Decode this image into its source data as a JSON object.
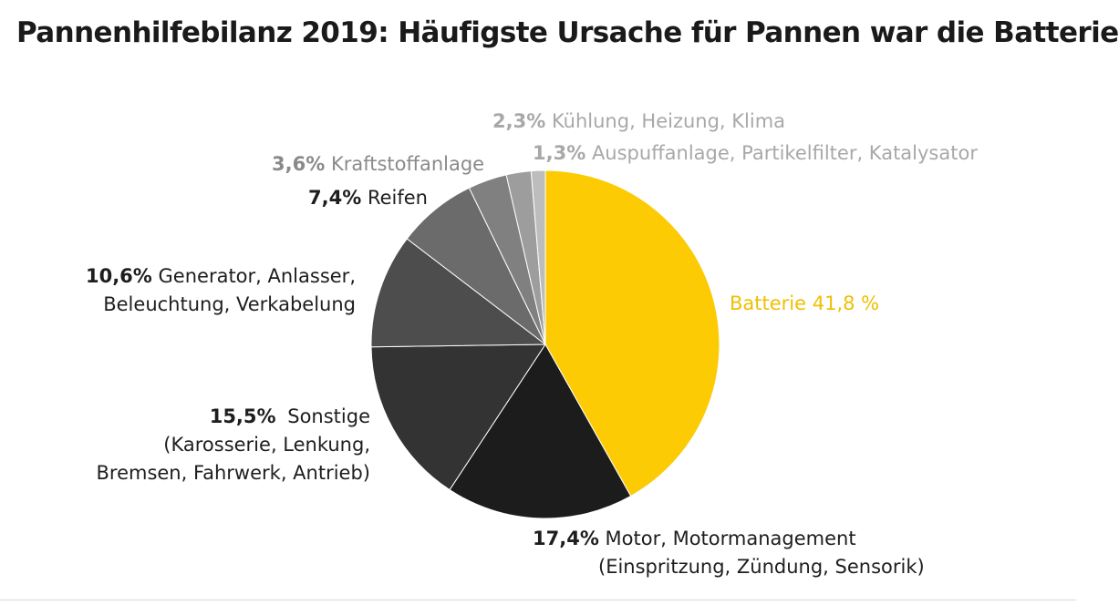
{
  "title": "Pannenhilfebilanz 2019: Häufigste Ursache für Pannen war die Batterie",
  "chart_data": {
    "type": "pie",
    "title": "Pannenhilfebilanz 2019: Häufigste Ursache für Pannen war die Batterie",
    "unit": "%",
    "slices": [
      {
        "label": "Batterie",
        "value": 41.8,
        "pct_text": "41,8 %",
        "color": "#fccb04"
      },
      {
        "label": "Motor, Motormanagement",
        "label2": "(Einspritzung, Zündung, Sensorik)",
        "value": 17.4,
        "pct_text": "17,4%",
        "color": "#1c1c1c"
      },
      {
        "label": "Sonstige",
        "label2": "(Karosserie, Lenkung,",
        "label3": "Bremsen, Fahrwerk, Antrieb)",
        "value": 15.5,
        "pct_text": "15,5%",
        "color": "#333333"
      },
      {
        "label": "Generator, Anlasser,",
        "label2": "Beleuchtung, Verkabelung",
        "value": 10.6,
        "pct_text": "10,6%",
        "color": "#4d4d4d"
      },
      {
        "label": "Reifen",
        "value": 7.4,
        "pct_text": "7,4%",
        "color": "#6b6b6b"
      },
      {
        "label": "Kraftstoffanlage",
        "value": 3.6,
        "pct_text": "3,6%",
        "color": "#808080"
      },
      {
        "label": "Kühlung, Heizung, Klima",
        "value": 2.3,
        "pct_text": "2,3%",
        "color": "#9d9d9d"
      },
      {
        "label": "Auspuffanlage, Partikelfilter, Katalysator",
        "value": 1.3,
        "pct_text": "1,3%",
        "color": "#bdbdbd"
      }
    ]
  }
}
